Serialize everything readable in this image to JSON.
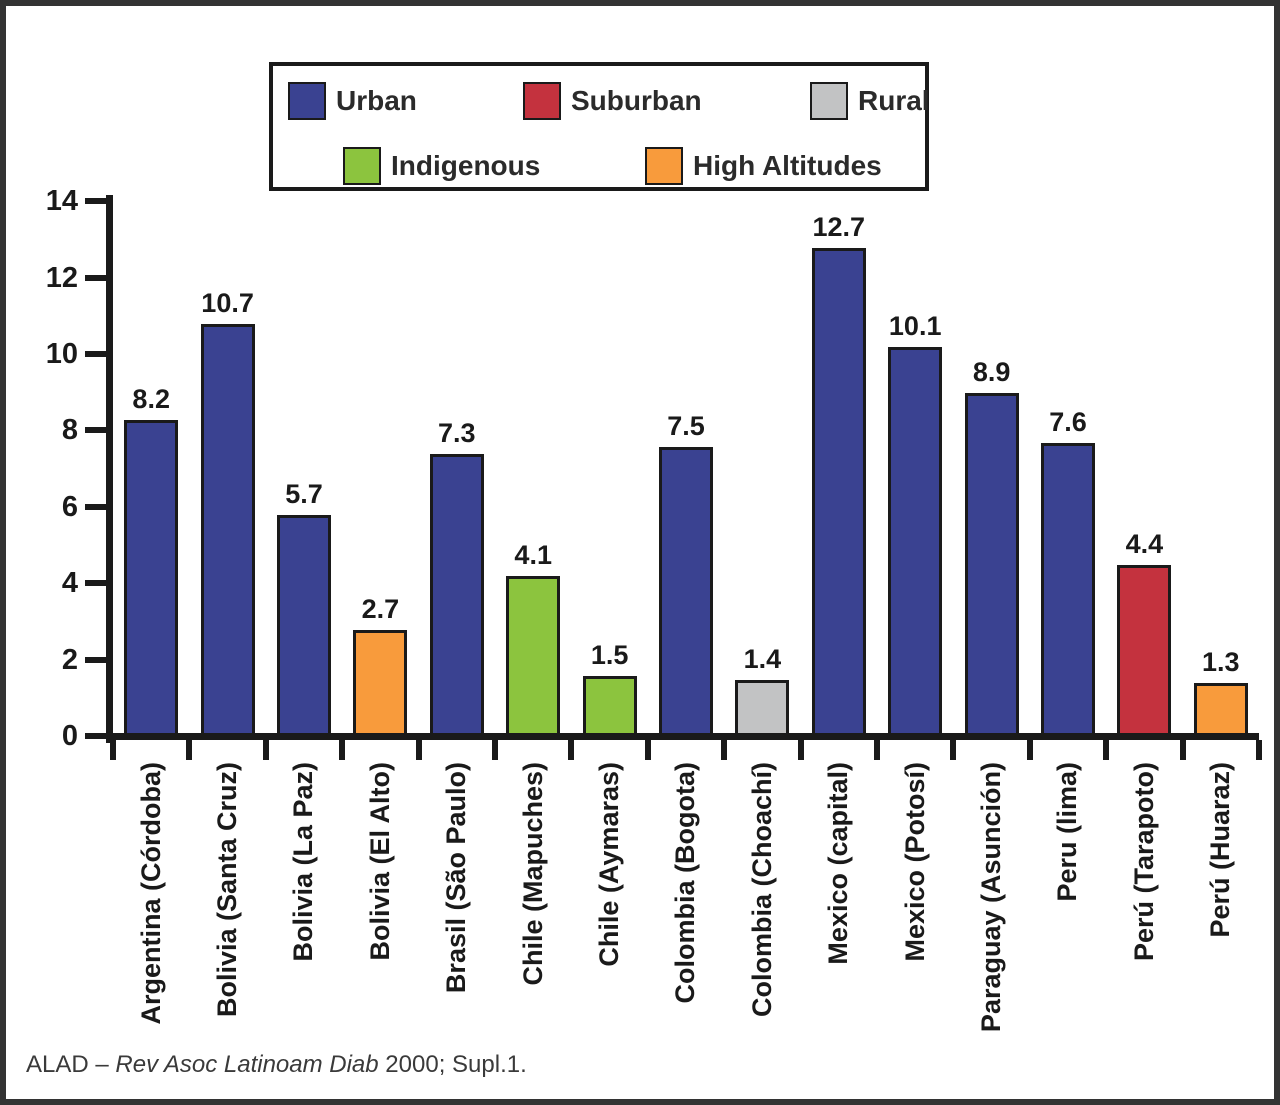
{
  "chart_data": {
    "type": "bar",
    "title": "",
    "xlabel": "",
    "ylabel": "",
    "ylim": [
      0,
      14
    ],
    "yticks": [
      0,
      2,
      4,
      6,
      8,
      10,
      12,
      14
    ],
    "grid": false,
    "legend_position": "top",
    "legend": [
      {
        "label": "Urban",
        "color": "#3A4291"
      },
      {
        "label": "Suburban",
        "color": "#C4323E"
      },
      {
        "label": "Rural",
        "color": "#C2C3C4"
      },
      {
        "label": "Indigenous",
        "color": "#8CC43E"
      },
      {
        "label": "High Altitudes",
        "color": "#F89B3C"
      }
    ],
    "bars": [
      {
        "label": "Argentina (Córdoba)",
        "value": 8.2,
        "group": "Urban"
      },
      {
        "label": "Bolivia (Santa Cruz)",
        "value": 10.7,
        "group": "Urban"
      },
      {
        "label": "Bolivia (La Paz)",
        "value": 5.7,
        "group": "Urban"
      },
      {
        "label": "Bolivia (El Alto)",
        "value": 2.7,
        "group": "High Altitudes"
      },
      {
        "label": "Brasil (São Paulo)",
        "value": 7.3,
        "group": "Urban"
      },
      {
        "label": "Chile (Mapuches)",
        "value": 4.1,
        "group": "Indigenous"
      },
      {
        "label": "Chile (Aymaras)",
        "value": 1.5,
        "group": "Indigenous"
      },
      {
        "label": "Colombia (Bogota)",
        "value": 7.5,
        "group": "Urban"
      },
      {
        "label": "Colombia (Choachí)",
        "value": 1.4,
        "group": "Rural"
      },
      {
        "label": "Mexico (capital)",
        "value": 12.7,
        "group": "Urban"
      },
      {
        "label": "Mexico (Potosí)",
        "value": 10.1,
        "group": "Urban"
      },
      {
        "label": "Paraguay (Asunción)",
        "value": 8.9,
        "group": "Urban"
      },
      {
        "label": "Peru (lima)",
        "value": 7.6,
        "group": "Urban"
      },
      {
        "label": "Perú (Tarapoto)",
        "value": 4.4,
        "group": "Suburban"
      },
      {
        "label": "Perú (Huaraz)",
        "value": 1.3,
        "group": "High Altitudes"
      }
    ]
  },
  "footer": {
    "prefix": "ALAD – ",
    "source_italic": "Rev Asoc Latinoam Diab",
    "suffix": " 2000; Supl.1."
  }
}
